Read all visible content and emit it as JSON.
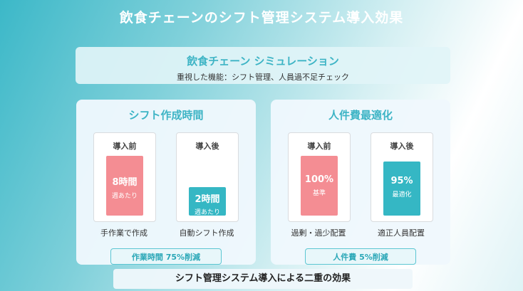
{
  "title": "飲食チェーンのシフト管理システム導入効果",
  "banner": {
    "title": "飲食チェーン シミュレーション",
    "subtitle": "重視した機能：シフト管理、人員過不足チェック"
  },
  "panels": [
    {
      "title": "シフト作成時間",
      "before": {
        "header": "導入前",
        "value": "8時間",
        "unit": "週あたり",
        "label": "手作業で作成"
      },
      "after": {
        "header": "導入後",
        "value": "2時間",
        "unit": "週あたり",
        "label": "自動シフト作成"
      },
      "result": "作業時間 75%削減"
    },
    {
      "title": "人件費最適化",
      "before": {
        "header": "導入前",
        "value": "100%",
        "unit": "基準",
        "label": "過剰・過少配置"
      },
      "after": {
        "header": "導入後",
        "value": "95%",
        "unit": "最適化",
        "label": "適正人員配置"
      },
      "result": "人件費 5%削減"
    }
  ],
  "bottom_caption": "シフト管理システム導入による二重の効果",
  "colors": {
    "accent": "#3db4c5",
    "before_bar": "#f48d93",
    "after_bar": "#35b7c4"
  }
}
